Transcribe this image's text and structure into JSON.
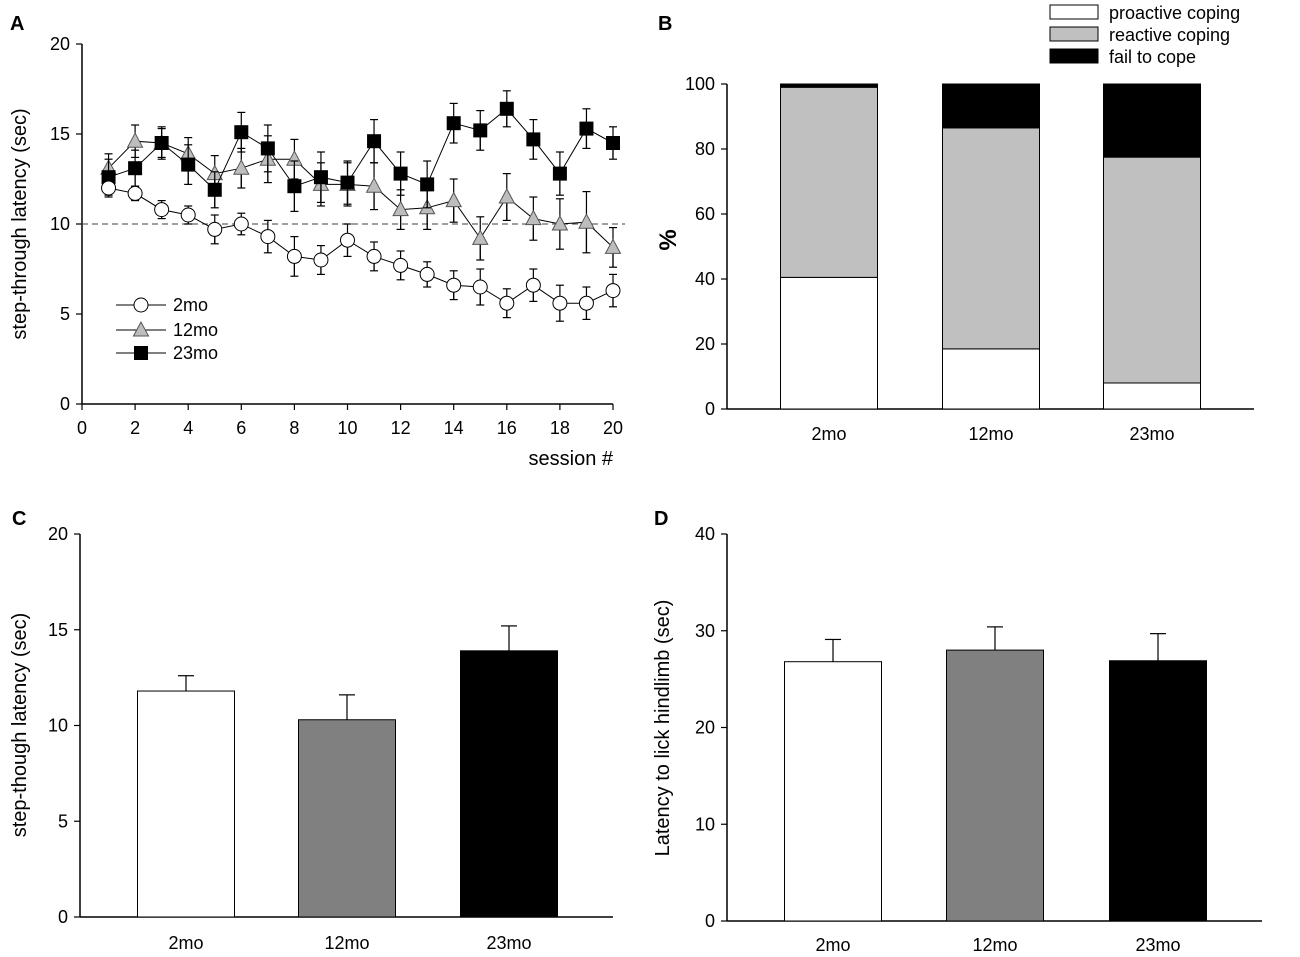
{
  "chart_data": [
    {
      "panel": "A",
      "type": "line",
      "xlabel": "session #",
      "ylabel": "step-through latency (sec)",
      "xlim": [
        0,
        20
      ],
      "ylim": [
        0,
        20
      ],
      "xticks": [
        0,
        2,
        4,
        6,
        8,
        10,
        12,
        14,
        16,
        18,
        20
      ],
      "yticks": [
        0,
        5,
        10,
        15,
        20
      ],
      "reference_line": 10,
      "legend_position": "bottom-left",
      "x": [
        1,
        2,
        3,
        4,
        5,
        6,
        7,
        8,
        9,
        10,
        11,
        12,
        13,
        14,
        15,
        16,
        17,
        18,
        19,
        20
      ],
      "series": [
        {
          "name": "2mo",
          "marker": "circle",
          "fill": "#ffffff",
          "values": [
            12.0,
            11.7,
            10.8,
            10.5,
            9.7,
            10.0,
            9.3,
            8.2,
            8.0,
            9.1,
            8.2,
            7.7,
            7.2,
            6.6,
            6.5,
            5.6,
            6.6,
            5.6,
            5.6,
            6.3
          ],
          "errors": [
            0.5,
            0.4,
            0.5,
            0.5,
            0.8,
            0.6,
            0.9,
            1.1,
            0.8,
            0.9,
            0.8,
            0.8,
            0.7,
            0.8,
            1.0,
            0.8,
            0.9,
            1.0,
            0.9,
            0.9
          ]
        },
        {
          "name": "12mo",
          "marker": "triangle",
          "fill": "#bdbdbd",
          "values": [
            13.1,
            14.6,
            14.5,
            13.9,
            12.8,
            13.1,
            13.6,
            13.6,
            12.2,
            12.2,
            12.1,
            10.8,
            10.9,
            11.3,
            9.2,
            11.5,
            10.3,
            10.0,
            10.1,
            8.7
          ],
          "errors": [
            0.8,
            0.9,
            0.9,
            0.9,
            1.0,
            1.1,
            1.3,
            1.1,
            1.2,
            1.2,
            1.3,
            1.1,
            1.2,
            1.2,
            1.2,
            1.3,
            1.2,
            1.4,
            1.7,
            1.1
          ]
        },
        {
          "name": "23mo",
          "marker": "square",
          "fill": "#000000",
          "values": [
            12.6,
            13.1,
            14.5,
            13.3,
            11.9,
            15.1,
            14.2,
            12.1,
            12.6,
            12.3,
            14.6,
            12.8,
            12.2,
            15.6,
            15.2,
            16.4,
            14.7,
            12.8,
            15.3,
            14.5
          ],
          "errors": [
            1.0,
            1.0,
            0.8,
            1.1,
            1.0,
            1.1,
            1.3,
            1.4,
            1.4,
            1.2,
            1.2,
            1.2,
            1.3,
            1.1,
            1.1,
            1.0,
            1.1,
            1.2,
            1.1,
            0.9
          ]
        }
      ]
    },
    {
      "panel": "B",
      "type": "bar",
      "stacked": true,
      "ylabel": "%",
      "ylim": [
        0,
        100
      ],
      "yticks": [
        0,
        20,
        40,
        60,
        80,
        100
      ],
      "categories": [
        "2mo",
        "12mo",
        "23mo"
      ],
      "legend_position": "top-right",
      "series": [
        {
          "name": "proactive coping",
          "fill": "#ffffff",
          "values": [
            40.5,
            18.5,
            8.0
          ]
        },
        {
          "name": "reactive coping",
          "fill": "#c0c0c0",
          "values": [
            58.5,
            68.0,
            69.5
          ]
        },
        {
          "name": "fail to cope",
          "fill": "#000000",
          "values": [
            1.0,
            13.5,
            22.5
          ]
        }
      ]
    },
    {
      "panel": "C",
      "type": "bar",
      "ylabel": "step-though latency (sec)",
      "ylim": [
        0,
        20
      ],
      "yticks": [
        0,
        5,
        10,
        15,
        20
      ],
      "categories": [
        "2mo",
        "12mo",
        "23mo"
      ],
      "fills": [
        "#ffffff",
        "#808080",
        "#000000"
      ],
      "values": [
        11.8,
        10.3,
        13.9
      ],
      "errors": [
        0.8,
        1.3,
        1.3
      ]
    },
    {
      "panel": "D",
      "type": "bar",
      "ylabel": "Latency to lick hindlimb (sec)",
      "ylim": [
        0,
        40
      ],
      "yticks": [
        0,
        10,
        20,
        30,
        40
      ],
      "categories": [
        "2mo",
        "12mo",
        "23mo"
      ],
      "fills": [
        "#ffffff",
        "#808080",
        "#000000"
      ],
      "values": [
        26.8,
        28.0,
        26.9
      ],
      "errors": [
        2.3,
        2.4,
        2.8
      ]
    }
  ]
}
